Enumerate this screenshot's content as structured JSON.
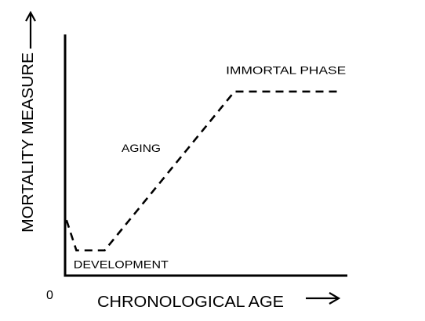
{
  "chart_data": {
    "type": "line",
    "xlabel": "CHRONOLOGICAL AGE",
    "ylabel": "MORTALITY MEASURE",
    "origin_label": "0",
    "xlim": [
      0,
      100
    ],
    "ylim": [
      0,
      100
    ],
    "grid": false,
    "series": [
      {
        "style": "dashed",
        "color": "#000000",
        "x": [
          0.5,
          4,
          14,
          60,
          97
        ],
        "y": [
          22,
          10,
          10,
          73,
          73
        ]
      }
    ],
    "annotations": [
      {
        "text": "DEVELOPMENT",
        "x": 3,
        "y": 3
      },
      {
        "text": "AGING",
        "x": 20,
        "y": 49
      },
      {
        "text": "IMMORTAL PHASE",
        "x": 57,
        "y": 80
      }
    ]
  }
}
